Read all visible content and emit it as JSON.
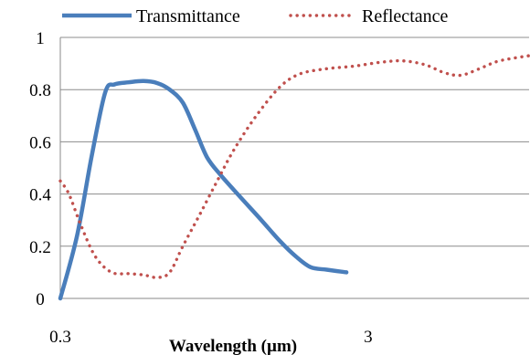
{
  "chart_data": {
    "type": "line",
    "title": "",
    "xlabel": "Wavelength (µm)",
    "ylabel": "",
    "x_scale": "log",
    "xlim": [
      0.3,
      10
    ],
    "ylim": [
      0,
      1
    ],
    "x_ticks": [
      "0.3",
      "3"
    ],
    "y_ticks": [
      "0",
      "0.2",
      "0.4",
      "0.6",
      "0.8",
      "1"
    ],
    "grid": "horizontal",
    "legend_position": "top",
    "series": [
      {
        "name": "Transmittance",
        "color": "#4a7ebb",
        "style": "solid",
        "points": [
          [
            0.3,
            0.0
          ],
          [
            0.34,
            0.24
          ],
          [
            0.38,
            0.55
          ],
          [
            0.42,
            0.79
          ],
          [
            0.45,
            0.82
          ],
          [
            0.5,
            0.828
          ],
          [
            0.56,
            0.833
          ],
          [
            0.62,
            0.825
          ],
          [
            0.68,
            0.8
          ],
          [
            0.75,
            0.75
          ],
          [
            0.82,
            0.65
          ],
          [
            0.9,
            0.54
          ],
          [
            1.0,
            0.47
          ],
          [
            1.15,
            0.39
          ],
          [
            1.35,
            0.3
          ],
          [
            1.55,
            0.22
          ],
          [
            1.75,
            0.16
          ],
          [
            1.95,
            0.12
          ],
          [
            2.2,
            0.11
          ],
          [
            2.55,
            0.1
          ]
        ]
      },
      {
        "name": "Reflectance",
        "color": "#c0504d",
        "style": "dotted",
        "points": [
          [
            0.3,
            0.45
          ],
          [
            0.32,
            0.4
          ],
          [
            0.35,
            0.28
          ],
          [
            0.39,
            0.16
          ],
          [
            0.44,
            0.1
          ],
          [
            0.5,
            0.095
          ],
          [
            0.56,
            0.09
          ],
          [
            0.62,
            0.08
          ],
          [
            0.68,
            0.1
          ],
          [
            0.75,
            0.2
          ],
          [
            0.85,
            0.32
          ],
          [
            0.97,
            0.45
          ],
          [
            1.1,
            0.57
          ],
          [
            1.3,
            0.7
          ],
          [
            1.55,
            0.81
          ],
          [
            1.8,
            0.86
          ],
          [
            2.2,
            0.88
          ],
          [
            2.7,
            0.89
          ],
          [
            3.3,
            0.905
          ],
          [
            3.9,
            0.91
          ],
          [
            4.6,
            0.895
          ],
          [
            5.3,
            0.865
          ],
          [
            6.0,
            0.855
          ],
          [
            6.9,
            0.88
          ],
          [
            8.0,
            0.91
          ],
          [
            10.0,
            0.93
          ]
        ]
      }
    ]
  }
}
